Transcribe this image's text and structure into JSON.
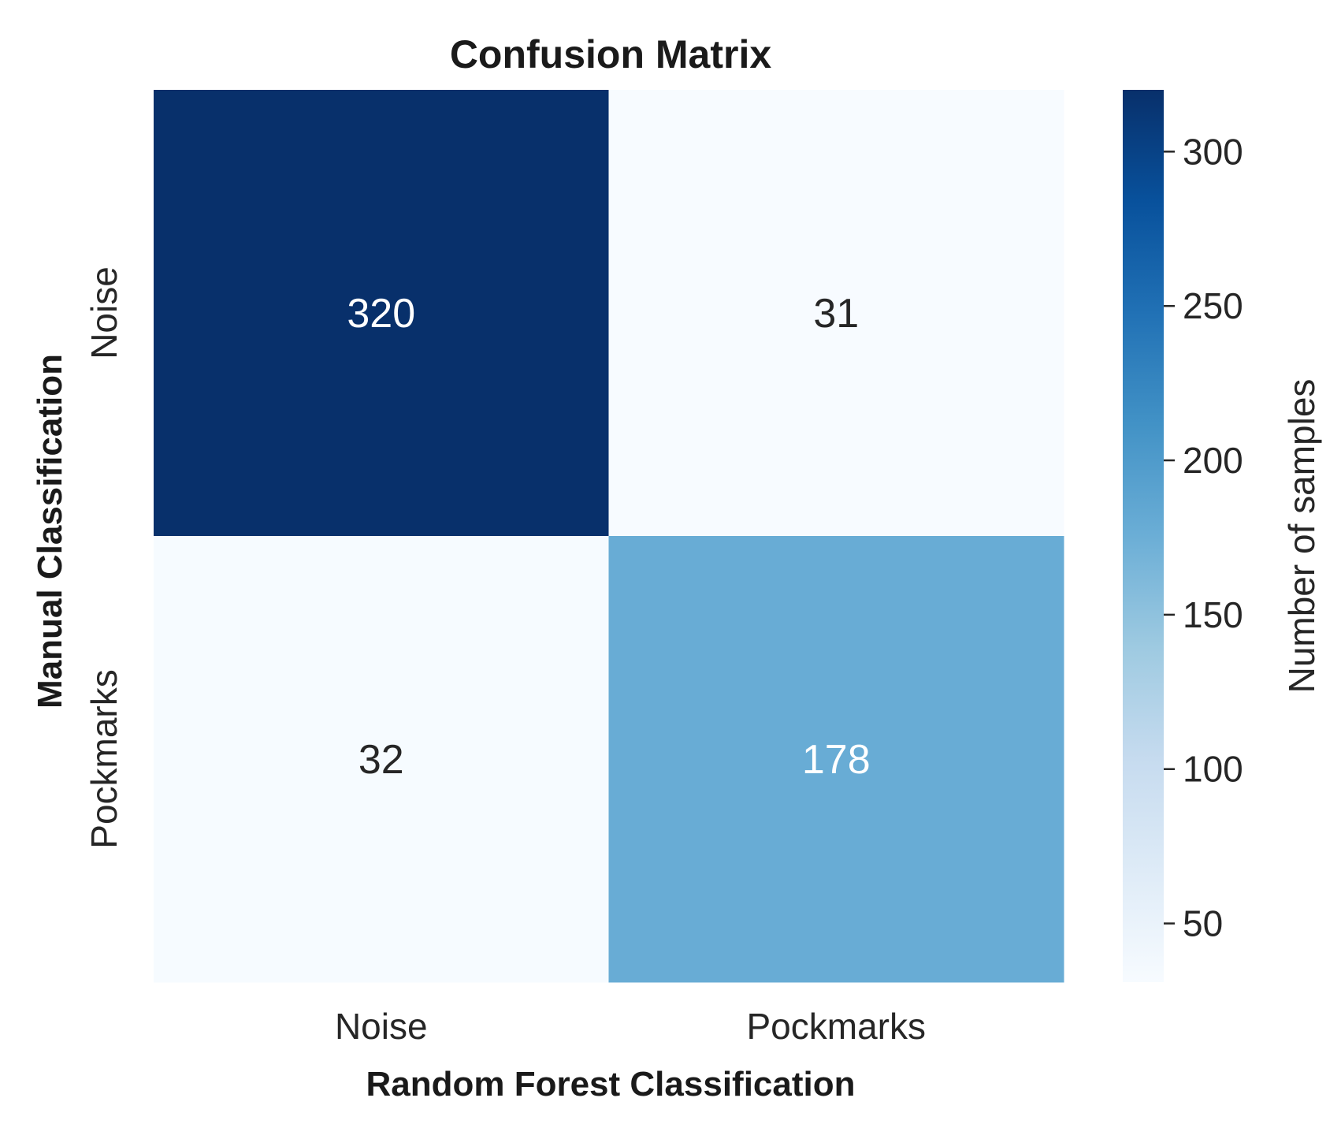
{
  "chart_data": {
    "type": "heatmap",
    "title": "Confusion Matrix",
    "xlabel": "Random Forest Classification",
    "ylabel": "Manual Classification",
    "x_categories": [
      "Noise",
      "Pockmarks"
    ],
    "y_categories": [
      "Noise",
      "Pockmarks"
    ],
    "values": [
      [
        320,
        31
      ],
      [
        32,
        178
      ]
    ],
    "colorbar": {
      "label": "Number of samples",
      "range": [
        31,
        320
      ],
      "ticks": [
        50,
        100,
        150,
        200,
        250,
        300
      ],
      "colormap": "Blues"
    },
    "colors": {
      "low": "#f7fbff",
      "high": "#08306b",
      "text_dark": "#262626",
      "text_light": "#ffffff"
    }
  }
}
